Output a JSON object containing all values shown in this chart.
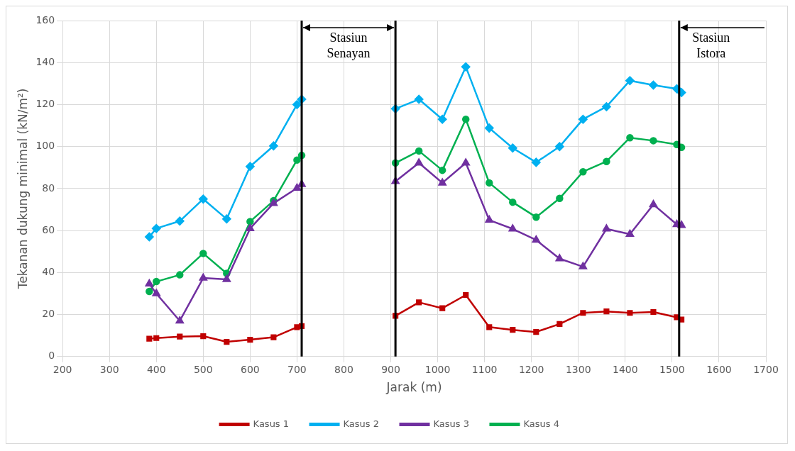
{
  "chart_data": {
    "type": "line",
    "xlabel": "Jarak (m)",
    "ylabel": "Tekanan dukung minimal (kN/m²)",
    "x": [
      385,
      400,
      450,
      500,
      550,
      600,
      650,
      700,
      710,
      810,
      910,
      960,
      1010,
      1060,
      1110,
      1160,
      1210,
      1260,
      1310,
      1360,
      1410,
      1460,
      1510,
      1520
    ],
    "series": [
      {
        "name": "Kasus 1",
        "color": "#c00000",
        "marker": "square",
        "values": [
          8.5,
          8.8,
          9.5,
          9.7,
          7,
          8,
          9.2,
          14,
          14.5,
          null,
          19.4,
          25.8,
          23,
          29.3,
          14,
          12.7,
          11.7,
          15.5,
          20.8,
          21.5,
          20.8,
          21.2,
          18.7,
          17.6
        ]
      },
      {
        "name": "Kasus 2",
        "color": "#00b0f0",
        "marker": "diamond",
        "values": [
          57,
          61,
          64.5,
          75,
          65.5,
          90.5,
          100.3,
          120,
          122.5,
          null,
          118,
          122.5,
          113,
          138,
          108.8,
          99.3,
          92.5,
          100,
          113,
          119,
          131.4,
          129.3,
          127.5,
          125.7
        ]
      },
      {
        "name": "Kasus 3",
        "color": "#7030a0",
        "marker": "triangle",
        "values": [
          34.6,
          30,
          17,
          37.4,
          36.7,
          61,
          73,
          80.2,
          82,
          null,
          83.4,
          92.2,
          82.7,
          92.2,
          65,
          60.8,
          55.5,
          46.6,
          42.8,
          60.8,
          58.3,
          72.4,
          62.9,
          62.5
        ]
      },
      {
        "name": "Kasus 4",
        "color": "#00b050",
        "marker": "circle",
        "values": [
          31,
          35.7,
          38.9,
          49.1,
          39.6,
          64.3,
          74.2,
          93.6,
          95.8,
          null,
          92.2,
          97.9,
          88.7,
          113,
          82.7,
          73.5,
          66.4,
          75.3,
          88,
          92.9,
          104.2,
          102.8,
          101,
          99.6
        ]
      }
    ],
    "xlim": [
      200,
      1700
    ],
    "xticks": [
      200,
      300,
      400,
      500,
      600,
      700,
      800,
      900,
      1000,
      1100,
      1200,
      1300,
      1400,
      1500,
      1600,
      1700
    ],
    "ylim": [
      0,
      160
    ],
    "yticks": [
      0,
      20,
      40,
      60,
      80,
      100,
      120,
      140,
      160
    ],
    "ref_lines": [
      {
        "axis": "x",
        "value": 710,
        "label": "Stasiun\nSenayan",
        "color": "#000000"
      },
      {
        "axis": "x",
        "value": 910,
        "color": "#000000"
      },
      {
        "axis": "x",
        "value": 1515,
        "label": "Stasiun\nIstora",
        "color": "#000000"
      }
    ],
    "grid": true,
    "legend": "bottom",
    "line_style": "solid"
  }
}
